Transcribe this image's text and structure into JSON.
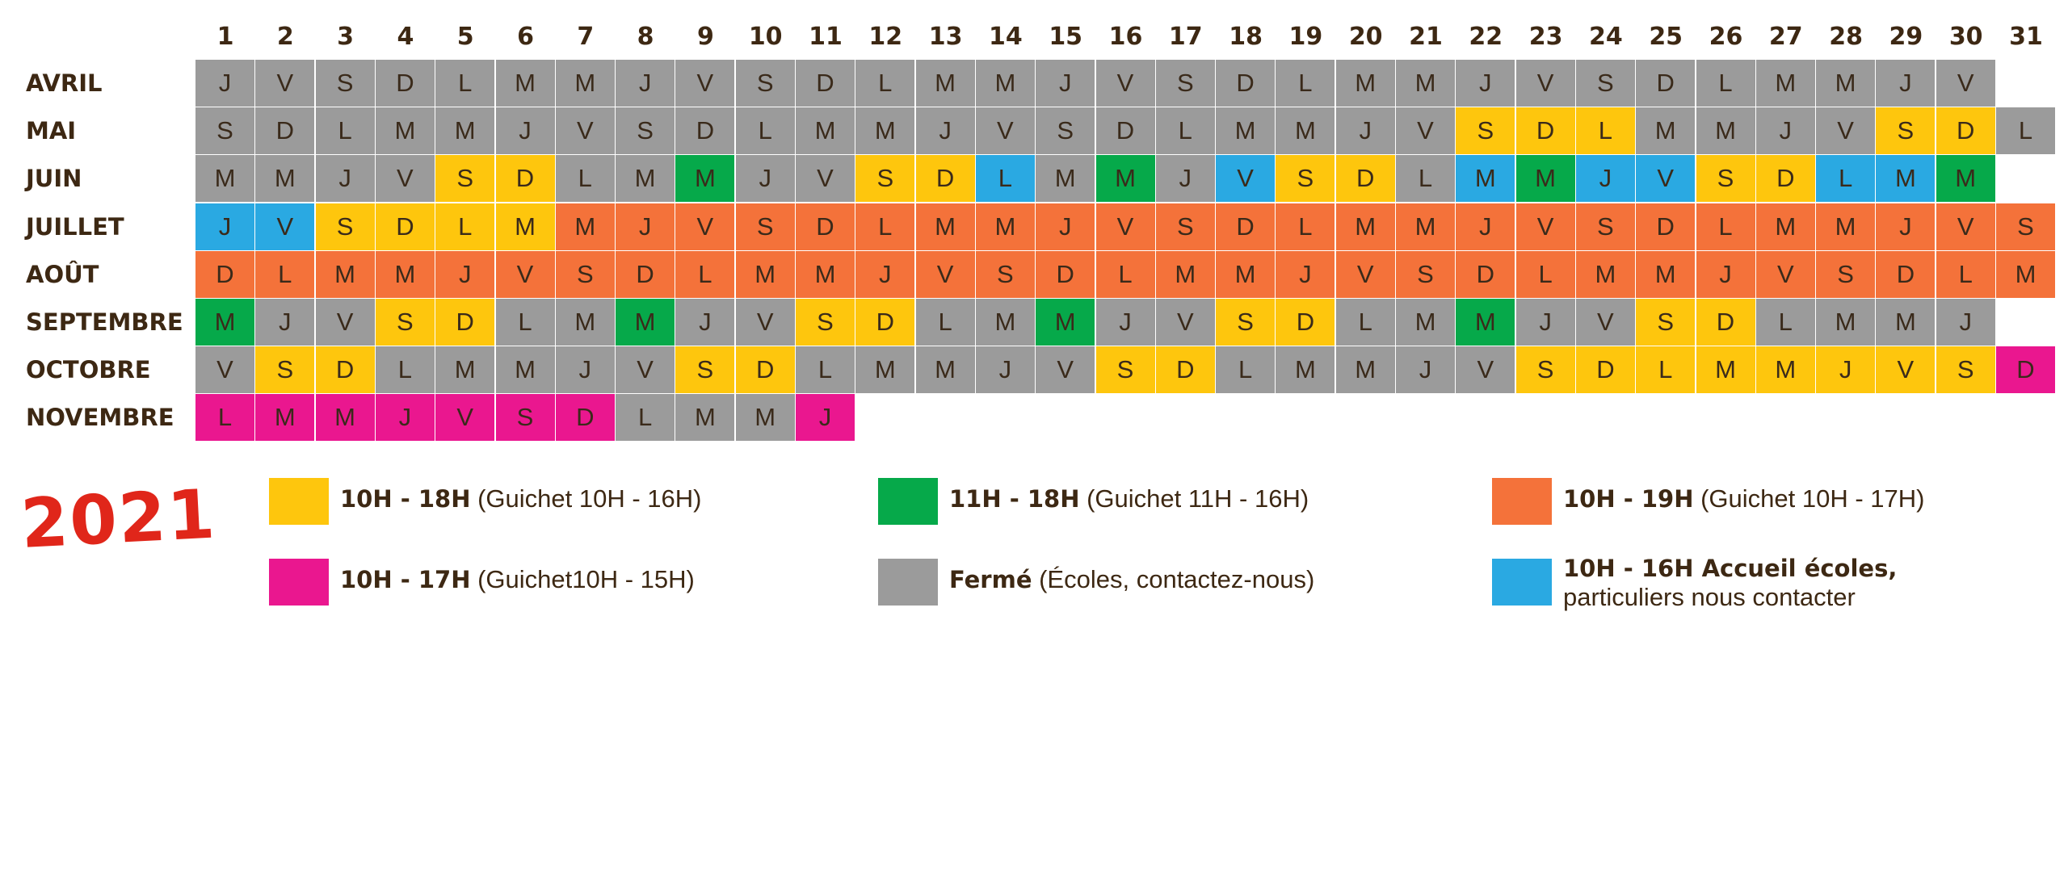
{
  "year": "2021",
  "days": [
    "1",
    "2",
    "3",
    "4",
    "5",
    "6",
    "7",
    "8",
    "9",
    "10",
    "11",
    "12",
    "13",
    "14",
    "15",
    "16",
    "17",
    "18",
    "19",
    "20",
    "21",
    "22",
    "23",
    "24",
    "25",
    "26",
    "27",
    "28",
    "29",
    "30",
    "31"
  ],
  "colors": {
    "G": "#9b9b9b",
    "Y": "#fec60d",
    "N": "#06a94a",
    "O": "#f4723a",
    "P": "#ea178f",
    "B": "#2aa9e2"
  },
  "months": [
    {
      "label": "AVRIL",
      "letters": [
        "J",
        "V",
        "S",
        "D",
        "L",
        "M",
        "M",
        "J",
        "V",
        "S",
        "D",
        "L",
        "M",
        "M",
        "J",
        "V",
        "S",
        "D",
        "L",
        "M",
        "M",
        "J",
        "V",
        "S",
        "D",
        "L",
        "M",
        "M",
        "J",
        "V"
      ],
      "codes": [
        "G",
        "G",
        "G",
        "G",
        "G",
        "G",
        "G",
        "G",
        "G",
        "G",
        "G",
        "G",
        "G",
        "G",
        "G",
        "G",
        "G",
        "G",
        "G",
        "G",
        "G",
        "G",
        "G",
        "G",
        "G",
        "G",
        "G",
        "G",
        "G",
        "G"
      ]
    },
    {
      "label": "MAI",
      "letters": [
        "S",
        "D",
        "L",
        "M",
        "M",
        "J",
        "V",
        "S",
        "D",
        "L",
        "M",
        "M",
        "J",
        "V",
        "S",
        "D",
        "L",
        "M",
        "M",
        "J",
        "V",
        "S",
        "D",
        "L",
        "M",
        "M",
        "J",
        "V",
        "S",
        "D",
        "L"
      ],
      "codes": [
        "G",
        "G",
        "G",
        "G",
        "G",
        "G",
        "G",
        "G",
        "G",
        "G",
        "G",
        "G",
        "G",
        "G",
        "G",
        "G",
        "G",
        "G",
        "G",
        "G",
        "G",
        "Y",
        "Y",
        "Y",
        "G",
        "G",
        "G",
        "G",
        "Y",
        "Y",
        "G"
      ]
    },
    {
      "label": "JUIN",
      "letters": [
        "M",
        "M",
        "J",
        "V",
        "S",
        "D",
        "L",
        "M",
        "M",
        "J",
        "V",
        "S",
        "D",
        "L",
        "M",
        "M",
        "J",
        "V",
        "S",
        "D",
        "L",
        "M",
        "M",
        "J",
        "V",
        "S",
        "D",
        "L",
        "M",
        "M"
      ],
      "codes": [
        "G",
        "G",
        "G",
        "G",
        "Y",
        "Y",
        "G",
        "G",
        "N",
        "G",
        "G",
        "Y",
        "Y",
        "B",
        "G",
        "N",
        "G",
        "B",
        "Y",
        "Y",
        "G",
        "B",
        "N",
        "B",
        "B",
        "Y",
        "Y",
        "B",
        "B",
        "N"
      ]
    },
    {
      "label": "JUILLET",
      "letters": [
        "J",
        "V",
        "S",
        "D",
        "L",
        "M",
        "M",
        "J",
        "V",
        "S",
        "D",
        "L",
        "M",
        "M",
        "J",
        "V",
        "S",
        "D",
        "L",
        "M",
        "M",
        "J",
        "V",
        "S",
        "D",
        "L",
        "M",
        "M",
        "J",
        "V",
        "S"
      ],
      "codes": [
        "B",
        "B",
        "Y",
        "Y",
        "Y",
        "Y",
        "O",
        "O",
        "O",
        "O",
        "O",
        "O",
        "O",
        "O",
        "O",
        "O",
        "O",
        "O",
        "O",
        "O",
        "O",
        "O",
        "O",
        "O",
        "O",
        "O",
        "O",
        "O",
        "O",
        "O",
        "O"
      ]
    },
    {
      "label": "AOÛT",
      "letters": [
        "D",
        "L",
        "M",
        "M",
        "J",
        "V",
        "S",
        "D",
        "L",
        "M",
        "M",
        "J",
        "V",
        "S",
        "D",
        "L",
        "M",
        "M",
        "J",
        "V",
        "S",
        "D",
        "L",
        "M",
        "M",
        "J",
        "V",
        "S",
        "D",
        "L",
        "M"
      ],
      "codes": [
        "O",
        "O",
        "O",
        "O",
        "O",
        "O",
        "O",
        "O",
        "O",
        "O",
        "O",
        "O",
        "O",
        "O",
        "O",
        "O",
        "O",
        "O",
        "O",
        "O",
        "O",
        "O",
        "O",
        "O",
        "O",
        "O",
        "O",
        "O",
        "O",
        "O",
        "O"
      ]
    },
    {
      "label": "SEPTEMBRE",
      "letters": [
        "M",
        "J",
        "V",
        "S",
        "D",
        "L",
        "M",
        "M",
        "J",
        "V",
        "S",
        "D",
        "L",
        "M",
        "M",
        "J",
        "V",
        "S",
        "D",
        "L",
        "M",
        "M",
        "J",
        "V",
        "S",
        "D",
        "L",
        "M",
        "M",
        "J"
      ],
      "codes": [
        "N",
        "G",
        "G",
        "Y",
        "Y",
        "G",
        "G",
        "N",
        "G",
        "G",
        "Y",
        "Y",
        "G",
        "G",
        "N",
        "G",
        "G",
        "Y",
        "Y",
        "G",
        "G",
        "N",
        "G",
        "G",
        "Y",
        "Y",
        "G",
        "G",
        "G",
        "G"
      ]
    },
    {
      "label": "OCTOBRE",
      "letters": [
        "V",
        "S",
        "D",
        "L",
        "M",
        "M",
        "J",
        "V",
        "S",
        "D",
        "L",
        "M",
        "M",
        "J",
        "V",
        "S",
        "D",
        "L",
        "M",
        "M",
        "J",
        "V",
        "S",
        "D",
        "L",
        "M",
        "M",
        "J",
        "V",
        "S",
        "D"
      ],
      "codes": [
        "G",
        "Y",
        "Y",
        "G",
        "G",
        "G",
        "G",
        "G",
        "Y",
        "Y",
        "G",
        "G",
        "G",
        "G",
        "G",
        "Y",
        "Y",
        "G",
        "G",
        "G",
        "G",
        "G",
        "Y",
        "Y",
        "Y",
        "Y",
        "Y",
        "Y",
        "Y",
        "Y",
        "P"
      ]
    },
    {
      "label": "NOVEMBRE",
      "letters": [
        "L",
        "M",
        "M",
        "J",
        "V",
        "S",
        "D",
        "L",
        "M",
        "M",
        "J"
      ],
      "codes": [
        "P",
        "P",
        "P",
        "P",
        "P",
        "P",
        "P",
        "G",
        "G",
        "G",
        "P"
      ]
    }
  ],
  "legend": [
    {
      "code": "Y",
      "bold": "10H - 18H",
      "text": " (Guichet 10H - 16H)",
      "line2": ""
    },
    {
      "code": "N",
      "bold": "11H - 18H",
      "text": " (Guichet 11H - 16H)",
      "line2": ""
    },
    {
      "code": "O",
      "bold": "10H - 19H",
      "text": " (Guichet 10H - 17H)",
      "line2": ""
    },
    {
      "code": "P",
      "bold": "10H - 17H",
      "text": " (Guichet10H - 15H)",
      "line2": ""
    },
    {
      "code": "G",
      "bold": "Fermé",
      "text": " (Écoles, contactez-nous)",
      "line2": ""
    },
    {
      "code": "B",
      "bold": "10H - 16H Accueil écoles,",
      "text": "",
      "line2": "particuliers nous contacter"
    }
  ]
}
